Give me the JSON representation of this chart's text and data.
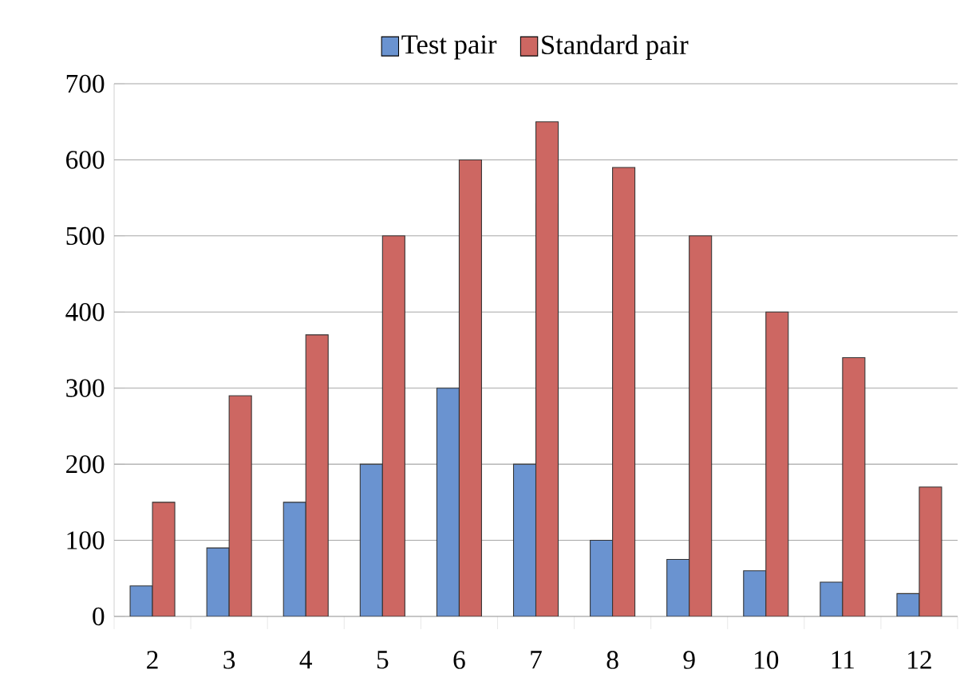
{
  "chart_data": {
    "type": "bar",
    "categories": [
      "2",
      "3",
      "4",
      "5",
      "6",
      "7",
      "8",
      "9",
      "10",
      "11",
      "12"
    ],
    "series": [
      {
        "name": "Test pair",
        "color": "#6a93d0",
        "values": [
          40,
          90,
          150,
          200,
          300,
          200,
          100,
          75,
          60,
          45,
          30
        ]
      },
      {
        "name": "Standard pair",
        "color": "#cd6762",
        "values": [
          150,
          290,
          370,
          500,
          600,
          650,
          590,
          500,
          400,
          340,
          170
        ]
      }
    ],
    "ylim": [
      0,
      700
    ],
    "yticks": [
      0,
      100,
      200,
      300,
      400,
      500,
      600,
      700
    ],
    "grid": "y",
    "legend": "top"
  }
}
